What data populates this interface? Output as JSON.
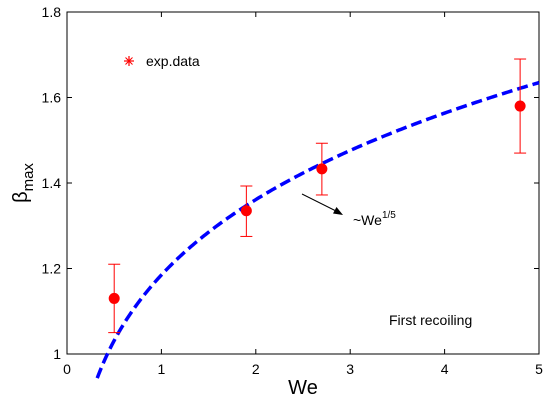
{
  "chart_data": {
    "type": "scatter",
    "xlabel": "We",
    "ylabel_main": "β",
    "ylabel_sub": "max",
    "xlim": [
      0,
      5
    ],
    "ylim": [
      1,
      1.8
    ],
    "xticks": [
      0,
      1,
      2,
      3,
      4,
      5
    ],
    "xtick_labels": [
      "0",
      "1",
      "2",
      "3",
      "4",
      "5"
    ],
    "yticks": [
      1,
      1.2,
      1.4,
      1.6,
      1.8
    ],
    "ytick_labels": [
      "1",
      "1.2",
      "1.4",
      "1.6",
      "1.8"
    ],
    "grid": false,
    "legend": {
      "placement": "top-left",
      "label": "exp.data"
    },
    "series": [
      {
        "name": "exp.data",
        "marker": "filled-circle",
        "color": "#ff0000",
        "x": [
          0.5,
          1.9,
          2.7,
          4.8
        ],
        "y": [
          1.13,
          1.335,
          1.433,
          1.58
        ],
        "err_low": [
          1.05,
          1.275,
          1.372,
          1.47
        ],
        "err_high": [
          1.21,
          1.393,
          1.493,
          1.69
        ]
      }
    ],
    "fit": {
      "style": "dashed",
      "color": "#0000ff",
      "x_start": 0.32,
      "x_end": 5.0,
      "label_prefix": "~We",
      "label_exponent": "1/5"
    },
    "annotations": [
      {
        "text": "First recoiling"
      }
    ]
  }
}
